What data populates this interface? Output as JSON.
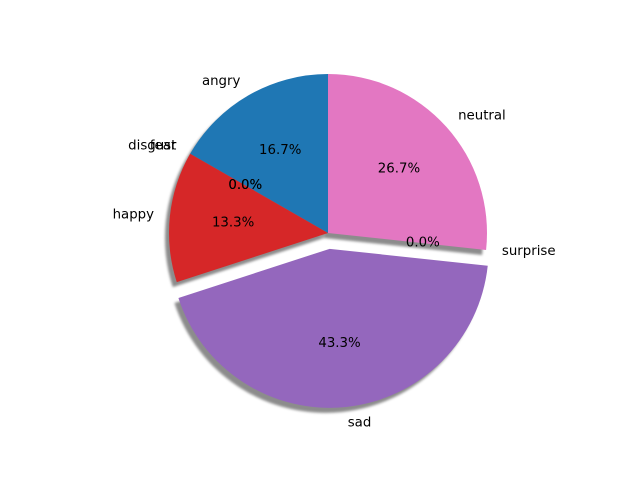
{
  "chart_data": {
    "type": "pie",
    "title": "",
    "start_angle_deg": 90,
    "counterclockwise": true,
    "shadow": true,
    "categories": [
      "angry",
      "disgust",
      "fear",
      "happy",
      "sad",
      "surprise",
      "neutral"
    ],
    "values": [
      16.7,
      0.0,
      0.0,
      13.3,
      43.3,
      0.0,
      26.7
    ],
    "percent_labels": [
      "16.7%",
      "0.0%",
      "0.0%",
      "13.3%",
      "43.3%",
      "0.0%",
      "26.7%"
    ],
    "colors": [
      "#1f77b4",
      "#ff7f0e",
      "#2ca02c",
      "#d62728",
      "#9467bd",
      "#8c564b",
      "#e377c2"
    ],
    "explode": [
      0,
      0,
      0,
      0,
      0.1,
      0,
      0
    ]
  }
}
